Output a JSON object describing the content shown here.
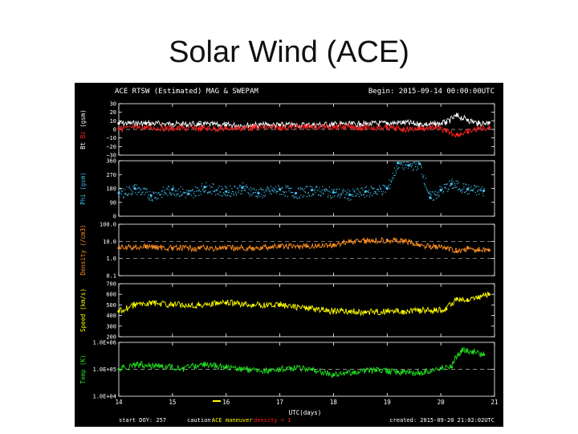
{
  "slide": {
    "title": "Solar Wind (ACE)"
  },
  "header": {
    "left": "ACE RTSW (Estimated) MAG & SWEPAM",
    "right": "Begin: 2015-09-14 00:00:00UTC"
  },
  "footer": {
    "start_doy": "start DOY: 257",
    "caution_prefix": "caution:",
    "caution_item1": "ACE maneuver",
    "caution_item2": "density < 1",
    "created": "created: 2015-09-20 21:02:02UTC",
    "xlabel": "UTC(days)"
  },
  "colors": {
    "bt": "#ffffff",
    "bz": "#ff2020",
    "phi": "#40c0f0",
    "density": "#ff9020",
    "speed": "#ffff00",
    "temp": "#20e020",
    "caution1": "#ffff00",
    "caution2": "#ff2020",
    "text": "#ffffff"
  },
  "chart_data": [
    {
      "type": "line",
      "panel": "mag",
      "ylabel": {
        "part1": "Bt",
        "part2": "Bz",
        "part3": "(gsm)"
      },
      "ylim": [
        -30,
        30
      ],
      "yticks": [
        "30",
        "20",
        "10",
        "0",
        "−10",
        "−20",
        "−30"
      ],
      "x": [
        14,
        14.5,
        15,
        15.5,
        16,
        16.5,
        17,
        17.5,
        18,
        18.5,
        19,
        19.3,
        19.6,
        19.9,
        20.1,
        20.3,
        20.5,
        20.7,
        20.9
      ],
      "series": [
        {
          "name": "Bt",
          "values": [
            7,
            7,
            6,
            6,
            5,
            5,
            5,
            5,
            6,
            6,
            7,
            8,
            6,
            6,
            8,
            16,
            11,
            7,
            8
          ]
        },
        {
          "name": "Bz",
          "values": [
            1,
            2,
            1,
            1,
            1,
            2,
            2,
            3,
            3,
            2,
            2,
            0,
            1,
            2,
            -2,
            -6,
            -3,
            1,
            2
          ]
        }
      ]
    },
    {
      "type": "scatter",
      "panel": "phi",
      "ylabel": "Phi (gsm)",
      "ylim": [
        0,
        360
      ],
      "yticks": [
        "360",
        "270",
        "180",
        "90",
        "0"
      ],
      "x": [
        14,
        14.3,
        14.6,
        15,
        15.3,
        15.6,
        16,
        16.3,
        16.6,
        17,
        17.3,
        17.6,
        18,
        18.3,
        18.6,
        19,
        19.2,
        19.4,
        19.6,
        19.8,
        20,
        20.2,
        20.5,
        20.8
      ],
      "values": [
        150,
        180,
        135,
        175,
        145,
        190,
        160,
        185,
        150,
        175,
        150,
        170,
        155,
        140,
        160,
        180,
        345,
        330,
        340,
        120,
        170,
        210,
        175,
        165
      ]
    },
    {
      "type": "line",
      "panel": "density",
      "ylabel": "Density (/cm3)",
      "scale": "log",
      "ylim": [
        0.1,
        100
      ],
      "yticks": [
        "100.0",
        "10.0",
        "1.0",
        "0.1"
      ],
      "x": [
        14,
        14.5,
        15,
        15.5,
        16,
        16.5,
        17,
        17.5,
        18,
        18.3,
        18.6,
        19,
        19.3,
        19.6,
        19.9,
        20.1,
        20.3,
        20.5,
        20.7,
        20.9
      ],
      "values": [
        4,
        5,
        4,
        4,
        4,
        4,
        5,
        5,
        6,
        10,
        11,
        12,
        10,
        6,
        5,
        4,
        2.5,
        4,
        3,
        3
      ]
    },
    {
      "type": "line",
      "panel": "speed",
      "ylabel": "Speed (km/s)",
      "ylim": [
        200,
        700
      ],
      "yticks": [
        "700",
        "600",
        "500",
        "400",
        "300",
        "200"
      ],
      "x": [
        14,
        14.3,
        14.6,
        15,
        15.5,
        16,
        16.5,
        17,
        17.5,
        18,
        18.3,
        18.6,
        19,
        19.3,
        19.6,
        19.9,
        20.1,
        20.3,
        20.5,
        20.7,
        20.9
      ],
      "values": [
        440,
        500,
        520,
        500,
        500,
        520,
        500,
        500,
        470,
        440,
        440,
        430,
        440,
        440,
        450,
        450,
        460,
        560,
        540,
        570,
        600
      ]
    },
    {
      "type": "scatter",
      "panel": "temp",
      "ylabel": "Temp (K)",
      "scale": "log",
      "ylim": [
        10000,
        1000000
      ],
      "yticks": [
        "1.0E+06",
        "1.0E+05",
        "1.0E+04"
      ],
      "x": [
        14,
        14.4,
        14.8,
        15.2,
        15.6,
        16,
        16.4,
        16.8,
        17.2,
        17.6,
        18,
        18.4,
        18.8,
        19.2,
        19.6,
        20,
        20.2,
        20.4,
        20.6,
        20.8
      ],
      "values": [
        100000,
        150000,
        130000,
        110000,
        150000,
        120000,
        100000,
        90000,
        110000,
        100000,
        60000,
        80000,
        90000,
        80000,
        70000,
        110000,
        120000,
        500000,
        450000,
        350000
      ]
    }
  ],
  "xaxis": {
    "xlim": [
      14,
      21
    ],
    "ticks": [
      "14",
      "15",
      "16",
      "17",
      "18",
      "19",
      "20",
      "21"
    ]
  }
}
